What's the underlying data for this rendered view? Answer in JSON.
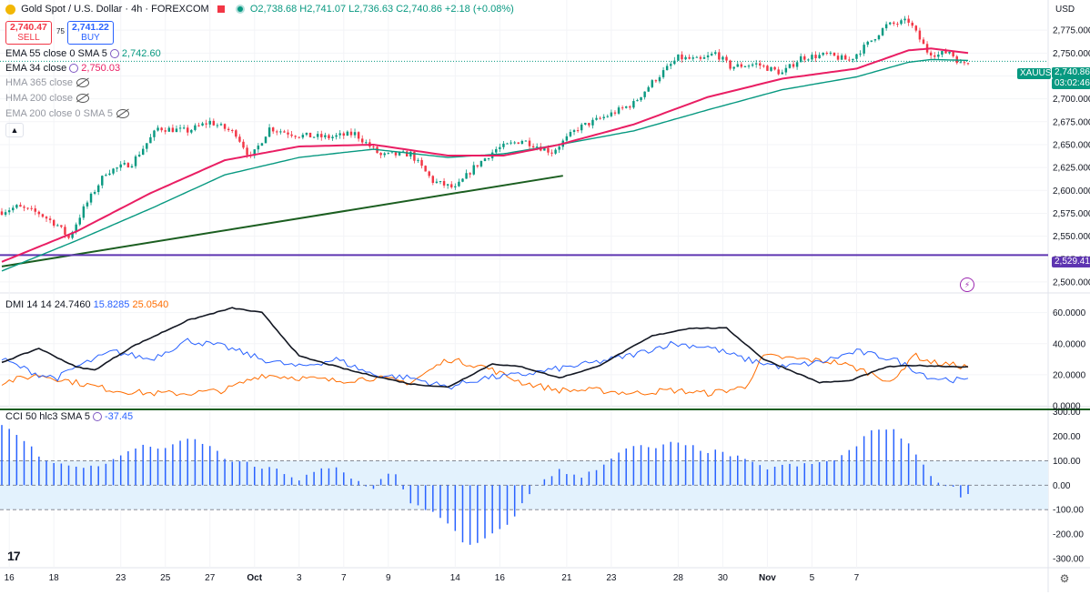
{
  "header": {
    "symbol_title": "Gold Spot / U.S. Dollar · 4h · FOREXCOM",
    "ohlc": "O2,738.68 H2,741.07 L2,736.63 C2,740.86 +2.18 (+0.08%)",
    "sell_price": "2,740.47",
    "sell_label": "SELL",
    "spread": "75",
    "buy_price": "2,741.22",
    "buy_label": "BUY",
    "currency": "USD"
  },
  "indicators": {
    "ema55": {
      "label": "EMA 55 close 0 SMA 5",
      "value": "2,742.60"
    },
    "ema34": {
      "label": "EMA 34 close",
      "value": "2,750.03"
    },
    "hma365": {
      "label": "HMA 365 close"
    },
    "hma200": {
      "label": "HMA 200 close"
    },
    "ema200": {
      "label": "EMA 200 close 0 SMA 5"
    },
    "dmi": {
      "label": "DMI 14 14",
      "adx": "24.7460",
      "plus": "15.8285",
      "minus": "25.0540"
    },
    "cci": {
      "label": "CCI 50 hlc3 SMA 5",
      "value": "-37.45"
    }
  },
  "tags": {
    "symbol": "XAUUSD",
    "last_price": "2,740.86",
    "countdown": "03:02:46",
    "hline_value": "2,529.41"
  },
  "colors": {
    "up": "#089981",
    "down": "#f23645",
    "ema34": "#e91e63",
    "ema55": "#089981",
    "trendline": "#1b5e20",
    "hline": "#5e35b1",
    "adx": "#131722",
    "di_plus": "#2962ff",
    "di_minus": "#ff6d00",
    "cci": "#2962ff",
    "cci_band": "#e3f2fd"
  },
  "chart_data": [
    {
      "type": "candlestick",
      "title": "Gold Spot / U.S. Dollar · 4h · FOREXCOM",
      "ylim": [
        2490,
        2800
      ],
      "y_ticks": [
        "2,775.000",
        "2,750.000",
        "2,725.000",
        "2,700.000",
        "2,675.000",
        "2,650.000",
        "2,625.000",
        "2,600.000",
        "2,575.000",
        "2,550.000",
        "2,525.000",
        "2,500.000"
      ],
      "y_tick_values": [
        2775,
        2750,
        2725,
        2700,
        2675,
        2650,
        2625,
        2600,
        2575,
        2550,
        2525,
        2500
      ],
      "x_labels": [
        "16",
        "18",
        "23",
        "25",
        "27",
        "Oct",
        "3",
        "7",
        "9",
        "14",
        "16",
        "21",
        "23",
        "28",
        "30",
        "Nov",
        "5",
        "7"
      ],
      "close_anchors": [
        [
          0,
          2577
        ],
        [
          4,
          2582
        ],
        [
          10,
          2575
        ],
        [
          15,
          2562
        ],
        [
          18,
          2548
        ],
        [
          22,
          2580
        ],
        [
          28,
          2620
        ],
        [
          35,
          2630
        ],
        [
          42,
          2668
        ],
        [
          50,
          2665
        ],
        [
          56,
          2675
        ],
        [
          63,
          2662
        ],
        [
          67,
          2635
        ],
        [
          72,
          2668
        ],
        [
          80,
          2660
        ],
        [
          88,
          2658
        ],
        [
          95,
          2662
        ],
        [
          102,
          2638
        ],
        [
          110,
          2640
        ],
        [
          116,
          2610
        ],
        [
          122,
          2602
        ],
        [
          127,
          2625
        ],
        [
          133,
          2645
        ],
        [
          140,
          2655
        ],
        [
          148,
          2642
        ],
        [
          155,
          2668
        ],
        [
          162,
          2680
        ],
        [
          170,
          2695
        ],
        [
          175,
          2718
        ],
        [
          182,
          2745
        ],
        [
          188,
          2742
        ],
        [
          192,
          2750
        ],
        [
          196,
          2735
        ],
        [
          203,
          2738
        ],
        [
          210,
          2728
        ],
        [
          215,
          2745
        ],
        [
          222,
          2748
        ],
        [
          228,
          2742
        ],
        [
          233,
          2760
        ],
        [
          238,
          2780
        ],
        [
          244,
          2785
        ],
        [
          249,
          2752
        ],
        [
          252,
          2748
        ],
        [
          255,
          2752
        ],
        [
          258,
          2738
        ],
        [
          260,
          2741
        ]
      ],
      "ema34_anchors": [
        [
          0,
          2522
        ],
        [
          20,
          2555
        ],
        [
          40,
          2597
        ],
        [
          60,
          2633
        ],
        [
          80,
          2648
        ],
        [
          100,
          2650
        ],
        [
          120,
          2638
        ],
        [
          135,
          2638
        ],
        [
          150,
          2650
        ],
        [
          170,
          2672
        ],
        [
          190,
          2702
        ],
        [
          210,
          2722
        ],
        [
          230,
          2733
        ],
        [
          244,
          2753
        ],
        [
          250,
          2755
        ],
        [
          260,
          2750
        ]
      ],
      "ema55_anchors": [
        [
          0,
          2512
        ],
        [
          20,
          2545
        ],
        [
          40,
          2580
        ],
        [
          60,
          2617
        ],
        [
          80,
          2636
        ],
        [
          100,
          2645
        ],
        [
          120,
          2636
        ],
        [
          135,
          2640
        ],
        [
          150,
          2650
        ],
        [
          170,
          2665
        ],
        [
          190,
          2688
        ],
        [
          210,
          2710
        ],
        [
          230,
          2724
        ],
        [
          244,
          2740
        ],
        [
          250,
          2743
        ],
        [
          260,
          2742
        ]
      ],
      "trendline": {
        "from": [
          0,
          2517
        ],
        "to": [
          151,
          2616
        ]
      },
      "hline": 2529.41,
      "bar_count": 261
    },
    {
      "type": "line",
      "title": "DMI 14 14",
      "ylim": [
        0,
        68
      ],
      "y_ticks": [
        "60.0000",
        "40.0000",
        "20.0000",
        "0.0000"
      ],
      "y_tick_values": [
        60,
        40,
        20,
        0
      ],
      "series": [
        {
          "name": "ADX",
          "anchors": [
            [
              0,
              28
            ],
            [
              10,
              37
            ],
            [
              20,
              25
            ],
            [
              25,
              23
            ],
            [
              35,
              38
            ],
            [
              50,
              55
            ],
            [
              62,
              63
            ],
            [
              70,
              60
            ],
            [
              80,
              32
            ],
            [
              95,
              22
            ],
            [
              110,
              14
            ],
            [
              120,
              12
            ],
            [
              132,
              27
            ],
            [
              140,
              25
            ],
            [
              150,
              18
            ],
            [
              160,
              25
            ],
            [
              175,
              45
            ],
            [
              185,
              50
            ],
            [
              195,
              50
            ],
            [
              205,
              30
            ],
            [
              220,
              15
            ],
            [
              228,
              16
            ],
            [
              238,
              25
            ],
            [
              245,
              26
            ],
            [
              260,
              25
            ]
          ]
        },
        {
          "name": "+DI",
          "anchors": [
            [
              0,
              30
            ],
            [
              5,
              25
            ],
            [
              10,
              20
            ],
            [
              15,
              18
            ],
            [
              20,
              25
            ],
            [
              30,
              35
            ],
            [
              40,
              30
            ],
            [
              50,
              42
            ],
            [
              60,
              38
            ],
            [
              70,
              30
            ],
            [
              80,
              25
            ],
            [
              90,
              30
            ],
            [
              100,
              20
            ],
            [
              110,
              18
            ],
            [
              120,
              12
            ],
            [
              130,
              18
            ],
            [
              140,
              20
            ],
            [
              150,
              24
            ],
            [
              160,
              28
            ],
            [
              170,
              33
            ],
            [
              180,
              40
            ],
            [
              190,
              38
            ],
            [
              200,
              30
            ],
            [
              210,
              25
            ],
            [
              220,
              28
            ],
            [
              230,
              35
            ],
            [
              240,
              30
            ],
            [
              250,
              18
            ],
            [
              260,
              16
            ]
          ]
        },
        {
          "name": "-DI",
          "anchors": [
            [
              0,
              15
            ],
            [
              10,
              20
            ],
            [
              20,
              15
            ],
            [
              30,
              10
            ],
            [
              40,
              8
            ],
            [
              50,
              8
            ],
            [
              60,
              10
            ],
            [
              70,
              20
            ],
            [
              80,
              18
            ],
            [
              90,
              16
            ],
            [
              100,
              18
            ],
            [
              110,
              15
            ],
            [
              120,
              30
            ],
            [
              130,
              25
            ],
            [
              140,
              15
            ],
            [
              150,
              10
            ],
            [
              160,
              10
            ],
            [
              170,
              8
            ],
            [
              180,
              10
            ],
            [
              190,
              8
            ],
            [
              200,
              12
            ],
            [
              205,
              32
            ],
            [
              215,
              30
            ],
            [
              225,
              28
            ],
            [
              235,
              20
            ],
            [
              240,
              15
            ],
            [
              245,
              33
            ],
            [
              250,
              28
            ],
            [
              260,
              25
            ]
          ]
        }
      ]
    },
    {
      "type": "bar",
      "title": "CCI 50 hlc3 SMA 5",
      "ylim": [
        -330,
        310
      ],
      "y_ticks": [
        "300.00",
        "200.00",
        "100.00",
        "0.00",
        "-100.00",
        "-200.00",
        "-300.00"
      ],
      "y_tick_values": [
        300,
        200,
        100,
        0,
        -100,
        -200,
        -300
      ],
      "band": [
        -100,
        100
      ],
      "anchors": [
        [
          0,
          240
        ],
        [
          5,
          200
        ],
        [
          10,
          120
        ],
        [
          15,
          90
        ],
        [
          20,
          70
        ],
        [
          25,
          80
        ],
        [
          30,
          100
        ],
        [
          35,
          150
        ],
        [
          40,
          160
        ],
        [
          45,
          150
        ],
        [
          50,
          190
        ],
        [
          55,
          170
        ],
        [
          60,
          110
        ],
        [
          65,
          90
        ],
        [
          70,
          70
        ],
        [
          75,
          60
        ],
        [
          80,
          20
        ],
        [
          85,
          60
        ],
        [
          90,
          70
        ],
        [
          95,
          20
        ],
        [
          100,
          -10
        ],
        [
          105,
          70
        ],
        [
          110,
          -80
        ],
        [
          115,
          -100
        ],
        [
          120,
          -150
        ],
        [
          125,
          -260
        ],
        [
          130,
          -220
        ],
        [
          135,
          -180
        ],
        [
          140,
          -80
        ],
        [
          145,
          20
        ],
        [
          150,
          60
        ],
        [
          155,
          30
        ],
        [
          160,
          70
        ],
        [
          165,
          120
        ],
        [
          170,
          160
        ],
        [
          175,
          150
        ],
        [
          180,
          170
        ],
        [
          185,
          160
        ],
        [
          190,
          140
        ],
        [
          195,
          130
        ],
        [
          200,
          100
        ],
        [
          205,
          70
        ],
        [
          210,
          80
        ],
        [
          215,
          80
        ],
        [
          220,
          90
        ],
        [
          225,
          110
        ],
        [
          230,
          160
        ],
        [
          235,
          240
        ],
        [
          240,
          220
        ],
        [
          245,
          160
        ],
        [
          250,
          30
        ],
        [
          255,
          0
        ],
        [
          258,
          -40
        ],
        [
          260,
          -37
        ]
      ]
    }
  ],
  "x_tick_values": [
    [
      2,
      "16"
    ],
    [
      14,
      "18"
    ],
    [
      32,
      "23"
    ],
    [
      44,
      "25"
    ],
    [
      56,
      "27"
    ],
    [
      68,
      "Oct"
    ],
    [
      80,
      "3"
    ],
    [
      92,
      "7"
    ],
    [
      104,
      "9"
    ],
    [
      122,
      "14"
    ],
    [
      134,
      "16"
    ],
    [
      152,
      "21"
    ],
    [
      164,
      "23"
    ],
    [
      182,
      "28"
    ],
    [
      194,
      "30"
    ],
    [
      206,
      "Nov"
    ],
    [
      218,
      "5"
    ],
    [
      230,
      "7"
    ]
  ]
}
